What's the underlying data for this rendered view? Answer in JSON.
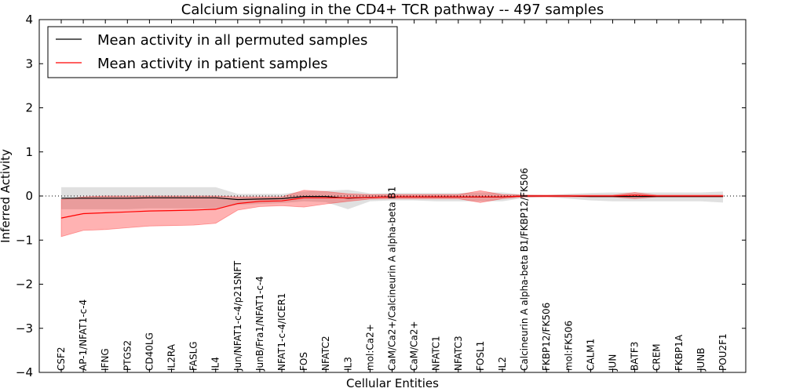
{
  "chart_data": {
    "type": "line",
    "title": "Calcium signaling in the CD4+ TCR pathway -- 497 samples",
    "xlabel": "Cellular Entities",
    "ylabel": "Inferred Activity",
    "ylim": [
      -4,
      4
    ],
    "yticks": [
      {
        "value": -4,
        "label": "−4"
      },
      {
        "value": -3,
        "label": "−3"
      },
      {
        "value": -2,
        "label": "−2"
      },
      {
        "value": -1,
        "label": "−1"
      },
      {
        "value": 0,
        "label": "0"
      },
      {
        "value": 1,
        "label": "1"
      },
      {
        "value": 2,
        "label": "2"
      },
      {
        "value": 3,
        "label": "3"
      },
      {
        "value": 4,
        "label": "4"
      }
    ],
    "grid": false,
    "legend_position": "top-left",
    "zero_reference_line": "dotted",
    "categories": [
      "CSF2",
      "AP-1/NFAT1-c-4",
      "IFNG",
      "PTGS2",
      "CD40LG",
      "IL2RA",
      "FASLG",
      "IL4",
      "Jun/NFAT1-c-4/p21SNFT",
      "JunB/Fra1/NFAT1-c-4",
      "NFAT1-c-4/ICER1",
      "FOS",
      "NFATC2",
      "IL3",
      "mol:Ca2+",
      "CaM/Ca2+/Calcineurin A alpha-beta B1",
      "CaM/Ca2+",
      "NFATC1",
      "NFATC3",
      "FOSL1",
      "IL2",
      "Calcineurin A alpha-beta B1/FKBP12/FK506",
      "FKBP12/FK506",
      "mol:FK506",
      "CALM1",
      "JUN",
      "BATF3",
      "CREM",
      "FKBP1A",
      "JUNB",
      "POU2F1"
    ],
    "series": [
      {
        "name": "Mean activity in all permuted samples",
        "color": "#000000",
        "band_color": "#bbbbbb",
        "values": [
          -0.05,
          -0.05,
          -0.05,
          -0.05,
          -0.04,
          -0.04,
          -0.04,
          -0.04,
          -0.08,
          -0.07,
          -0.06,
          -0.01,
          -0.01,
          -0.05,
          -0.03,
          -0.02,
          -0.02,
          -0.02,
          -0.02,
          -0.02,
          -0.02,
          0.0,
          0.0,
          0.0,
          -0.01,
          -0.01,
          -0.01,
          -0.01,
          -0.01,
          -0.01,
          -0.01
        ],
        "upper": [
          0.2,
          0.2,
          0.2,
          0.2,
          0.2,
          0.2,
          0.2,
          0.2,
          0.05,
          0.05,
          0.05,
          0.1,
          0.12,
          0.14,
          0.06,
          0.07,
          0.07,
          0.07,
          0.07,
          0.08,
          0.08,
          0.03,
          0.02,
          0.05,
          0.07,
          0.08,
          0.08,
          0.08,
          0.08,
          0.08,
          0.1
        ],
        "lower": [
          -0.3,
          -0.3,
          -0.3,
          -0.3,
          -0.28,
          -0.28,
          -0.28,
          -0.28,
          -0.2,
          -0.18,
          -0.16,
          -0.12,
          -0.14,
          -0.3,
          -0.12,
          -0.1,
          -0.1,
          -0.12,
          -0.12,
          -0.12,
          -0.12,
          -0.04,
          -0.02,
          -0.06,
          -0.1,
          -0.12,
          -0.12,
          -0.12,
          -0.12,
          -0.12,
          -0.15
        ]
      },
      {
        "name": "Mean activity in patient samples",
        "color": "#ff0000",
        "band_color": "#ff0000",
        "values": [
          -0.5,
          -0.4,
          -0.38,
          -0.36,
          -0.34,
          -0.33,
          -0.32,
          -0.3,
          -0.17,
          -0.12,
          -0.11,
          -0.04,
          -0.04,
          -0.04,
          -0.03,
          -0.02,
          -0.02,
          -0.02,
          -0.02,
          -0.02,
          -0.02,
          0.0,
          0.0,
          0.0,
          0.0,
          0.0,
          0.02,
          0.0,
          0.0,
          0.0,
          0.0
        ],
        "upper": [
          -0.08,
          -0.02,
          0.0,
          0.0,
          0.0,
          0.0,
          0.0,
          0.0,
          -0.02,
          -0.02,
          -0.02,
          0.13,
          0.1,
          0.05,
          0.03,
          0.03,
          0.03,
          0.03,
          0.03,
          0.12,
          0.03,
          0.02,
          0.02,
          0.02,
          0.02,
          0.02,
          0.08,
          0.02,
          0.02,
          0.02,
          0.02
        ],
        "lower": [
          -0.92,
          -0.78,
          -0.76,
          -0.72,
          -0.68,
          -0.67,
          -0.66,
          -0.62,
          -0.32,
          -0.24,
          -0.22,
          -0.25,
          -0.18,
          -0.12,
          -0.07,
          -0.06,
          -0.06,
          -0.06,
          -0.06,
          -0.15,
          -0.06,
          -0.02,
          -0.02,
          -0.02,
          -0.02,
          -0.02,
          -0.06,
          -0.02,
          -0.02,
          -0.02,
          -0.02
        ]
      }
    ]
  }
}
